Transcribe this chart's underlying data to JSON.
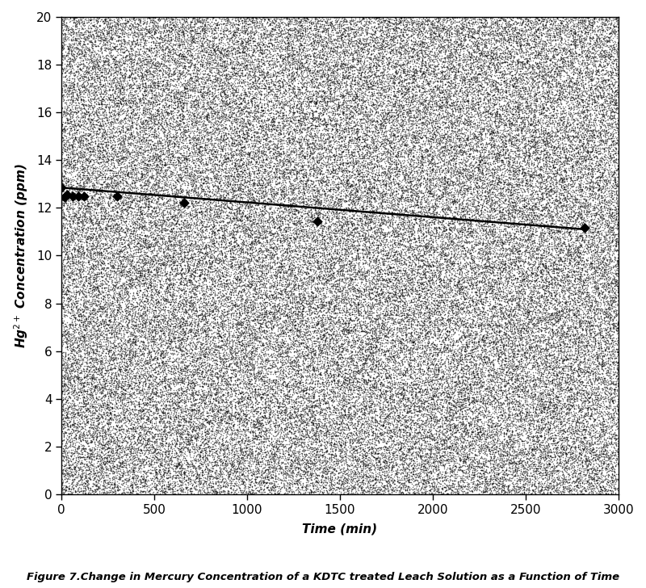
{
  "title": "Figure 7.Change in Mercury Concentration of a KDTC treated Leach Solution as a Function of Time",
  "xlabel": "Time (min)",
  "xlim": [
    0,
    3000
  ],
  "ylim": [
    0,
    20
  ],
  "xticks": [
    0,
    500,
    1000,
    1500,
    2000,
    2500,
    3000
  ],
  "yticks": [
    0,
    2,
    4,
    6,
    8,
    10,
    12,
    14,
    16,
    18,
    20
  ],
  "data_x": [
    0,
    15,
    30,
    60,
    90,
    120,
    300,
    660,
    1380,
    2820
  ],
  "data_y": [
    12.85,
    12.45,
    12.55,
    12.5,
    12.5,
    12.5,
    12.5,
    12.2,
    11.45,
    11.15
  ],
  "trendline_x": [
    0,
    2820
  ],
  "trendline_y": [
    12.85,
    11.1
  ],
  "marker_color": "black",
  "line_color": "black",
  "n_noise_dots": 120000,
  "noise_dot_size": 1.2,
  "noise_alpha": 0.55
}
